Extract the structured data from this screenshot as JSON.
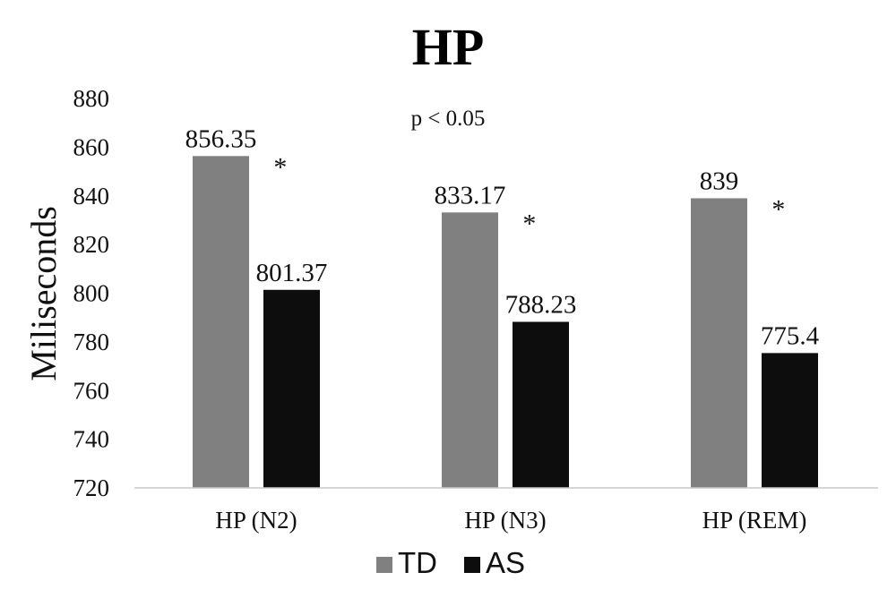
{
  "chart_data": {
    "type": "bar",
    "title": "HP",
    "ylabel": "Miliseconds",
    "xlabel": "",
    "ylim": [
      720,
      880
    ],
    "yticks": [
      720,
      740,
      760,
      780,
      800,
      820,
      840,
      860,
      880
    ],
    "grid": false,
    "legend_position": "bottom",
    "categories": [
      "HP (N2)",
      "HP (N3)",
      "HP (REM)"
    ],
    "series": [
      {
        "name": "TD",
        "color": "#808080",
        "values": [
          856.35,
          833.17,
          839
        ]
      },
      {
        "name": "AS",
        "color": "#0d0d0d",
        "values": [
          801.37,
          788.23,
          775.4
        ]
      }
    ],
    "data_labels": [
      [
        "856.35",
        "833.17",
        "839"
      ],
      [
        "801.37",
        "788.23",
        "775.4"
      ]
    ],
    "significance_markers": [
      "*",
      "*",
      "*"
    ],
    "annotation": "p < 0.05"
  }
}
